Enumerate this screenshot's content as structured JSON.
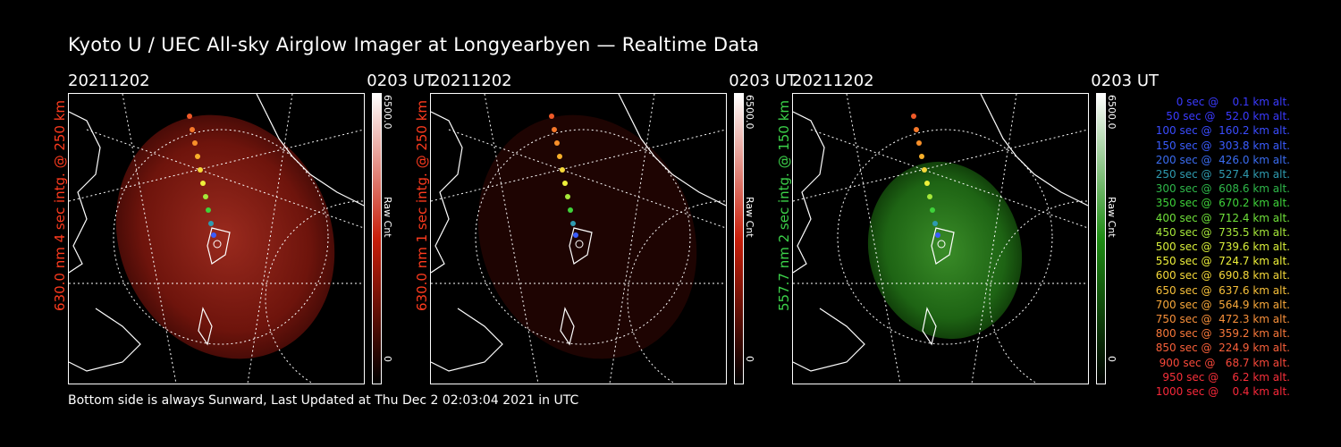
{
  "header": {
    "title": "Kyoto U / UEC All-sky Airglow Imager at Longyearbyen — Realtime Data"
  },
  "panels": [
    {
      "date": "20211202",
      "time": "0203 UT",
      "ylabel": "630.0 nm 4 sec intg. @ 250 km",
      "ylabel_color": "#ff3b1e",
      "cb_max": "6500.0",
      "cb_unit": "Raw Cnt",
      "cb_min": "0",
      "accent": "#c81e0a"
    },
    {
      "date": "20211202",
      "time": "0203 UT",
      "ylabel": "630.0 nm 1 sec intg. @ 250 km",
      "ylabel_color": "#ff3b1e",
      "cb_max": "6500.0",
      "cb_unit": "Raw Cnt",
      "cb_min": "0",
      "accent": "#3a0a06"
    },
    {
      "date": "20211202",
      "time": "0203 UT",
      "ylabel": "557.7 nm 2 sec intg. @ 150 km",
      "ylabel_color": "#3cd24a",
      "cb_max": "6500.0",
      "cb_unit": "Raw Cnt",
      "cb_min": "0",
      "accent": "#1e8c14"
    }
  ],
  "legend": [
    {
      "text": "0 sec @    0.1 km alt.",
      "color": "#3a3aff"
    },
    {
      "text": "50 sec @   52.0 km alt.",
      "color": "#3a3aff"
    },
    {
      "text": "100 sec @  160.2 km alt.",
      "color": "#3a4cff"
    },
    {
      "text": "150 sec @  303.8 km alt.",
      "color": "#3a5cff"
    },
    {
      "text": "200 sec @  426.0 km alt.",
      "color": "#3a6cf0"
    },
    {
      "text": "250 sec @  527.4 km alt.",
      "color": "#2f9bb0"
    },
    {
      "text": "300 sec @  608.6 km alt.",
      "color": "#2fb84a"
    },
    {
      "text": "350 sec @  670.2 km alt.",
      "color": "#3fd23a"
    },
    {
      "text": "400 sec @  712.4 km alt.",
      "color": "#6fe03a"
    },
    {
      "text": "450 sec @  735.5 km alt.",
      "color": "#a6e83a"
    },
    {
      "text": "500 sec @  739.6 km alt.",
      "color": "#d8ee3a"
    },
    {
      "text": "550 sec @  724.7 km alt.",
      "color": "#eef03a"
    },
    {
      "text": "600 sec @  690.8 km alt.",
      "color": "#f5d83a"
    },
    {
      "text": "650 sec @  637.6 km alt.",
      "color": "#f7c03a"
    },
    {
      "text": "700 sec @  564.9 km alt.",
      "color": "#f8a83a"
    },
    {
      "text": "750 sec @  472.3 km alt.",
      "color": "#f8903a"
    },
    {
      "text": "800 sec @  359.2 km alt.",
      "color": "#f8783a"
    },
    {
      "text": "850 sec @  224.9 km alt.",
      "color": "#f8603a"
    },
    {
      "text": "900 sec @   68.7 km alt.",
      "color": "#f8483a"
    },
    {
      "text": "950 sec @    6.2 km alt.",
      "color": "#f8303a"
    },
    {
      "text": "1000 sec @    0.4 km alt.",
      "color": "#f8283a"
    }
  ],
  "footer": {
    "text": "Bottom side is always Sunward, Last Updated at Thu Dec  2 02:03:04 2021 in UTC"
  }
}
